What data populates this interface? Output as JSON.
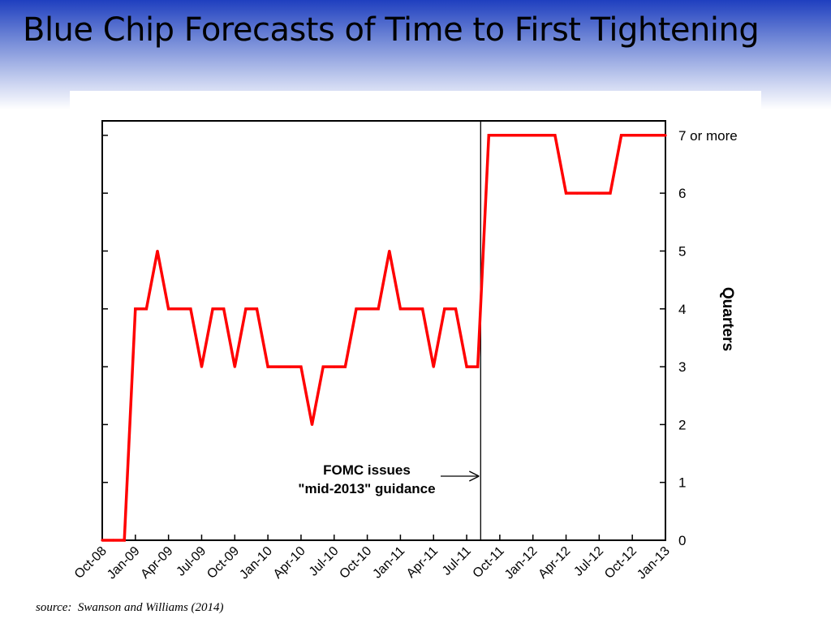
{
  "slide": {
    "title": "Blue Chip Forecasts of Time to First Tightening",
    "source": "source:  Swanson and Williams (2014)"
  },
  "chart_data": {
    "type": "line",
    "title": "",
    "xlabel": "",
    "ylabel": "Quarters",
    "ylim": [
      0,
      7.25
    ],
    "xlim": [
      "2008-10",
      "2013-01"
    ],
    "grid": false,
    "y_ticks": [
      0,
      1,
      2,
      3,
      4,
      5,
      6,
      7
    ],
    "y_tick_labels": [
      "0",
      "1",
      "2",
      "3",
      "4",
      "5",
      "6",
      "7 or more"
    ],
    "x_tick_labels": [
      "Oct-08",
      "Jan-09",
      "Apr-09",
      "Jul-09",
      "Oct-09",
      "Jan-10",
      "Apr-10",
      "Jul-10",
      "Oct-10",
      "Jan-11",
      "Apr-11",
      "Jul-11",
      "Oct-11",
      "Jan-12",
      "Apr-12",
      "Jul-12",
      "Oct-12",
      "Jan-13"
    ],
    "line_color": "#ff0000",
    "series": [
      {
        "x": [
          "2008-10",
          "2008-11",
          "2008-12",
          "2009-01",
          "2009-02",
          "2009-03",
          "2009-04",
          "2009-05",
          "2009-06",
          "2009-07",
          "2009-08",
          "2009-09",
          "2009-10",
          "2009-11",
          "2009-12",
          "2010-01",
          "2010-02",
          "2010-03",
          "2010-04",
          "2010-05",
          "2010-06",
          "2010-07",
          "2010-08",
          "2010-09",
          "2010-10",
          "2010-11",
          "2010-12",
          "2011-01",
          "2011-02",
          "2011-03",
          "2011-04",
          "2011-05",
          "2011-06",
          "2011-07",
          "2011-08",
          "2011-09",
          "2011-10",
          "2011-11",
          "2011-12",
          "2012-01",
          "2012-02",
          "2012-03",
          "2012-04",
          "2012-05",
          "2012-06",
          "2012-07",
          "2012-08",
          "2012-09",
          "2012-10",
          "2012-11",
          "2012-12",
          "2013-01"
        ],
        "values": [
          0,
          0,
          0,
          4,
          4,
          5,
          4,
          4,
          4,
          3,
          4,
          4,
          3,
          4,
          4,
          3,
          3,
          3,
          3,
          2,
          3,
          3,
          3,
          4,
          4,
          4,
          5,
          4,
          4,
          4,
          3,
          4,
          4,
          3,
          3,
          7,
          7,
          7,
          7,
          7,
          7,
          7,
          6,
          6,
          6,
          6,
          6,
          7,
          7,
          7,
          7,
          7
        ]
      }
    ],
    "event_line": {
      "x": "2011-08-09"
    },
    "annotation": {
      "lines": [
        "FOMC issues",
        "\"mid-2013\" guidance"
      ]
    }
  }
}
